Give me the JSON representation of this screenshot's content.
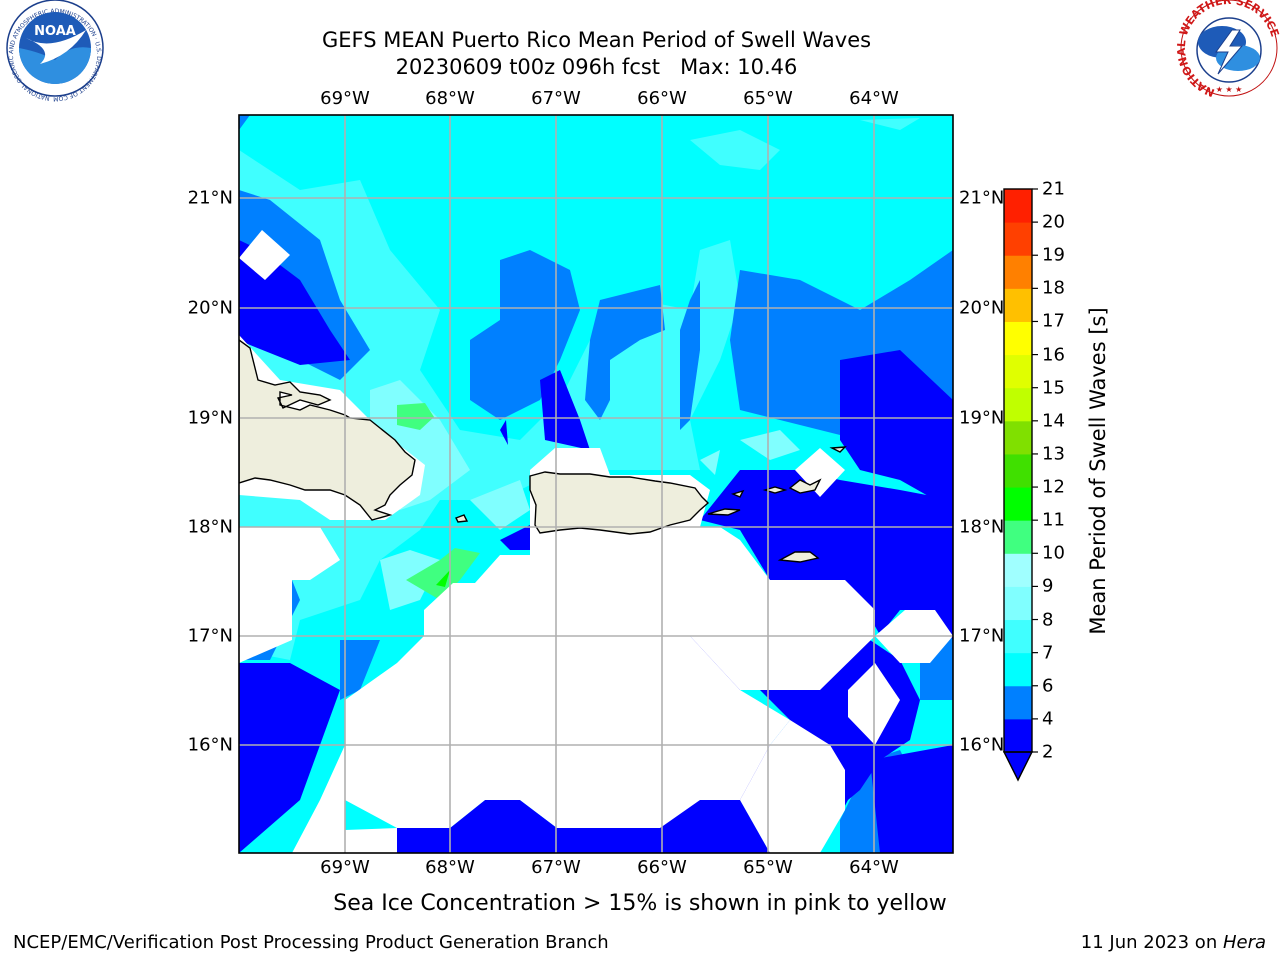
{
  "title": {
    "line1": "GEFS MEAN Puerto Rico Mean Period of Swell Waves",
    "line2": "20230609 t00z 096h fcst   Max: 10.46"
  },
  "map": {
    "lon_ticks": [
      "69°W",
      "68°W",
      "67°W",
      "66°W",
      "65°W",
      "64°W"
    ],
    "lat_ticks": [
      "21°N",
      "20°N",
      "19°N",
      "18°N",
      "17°N",
      "16°N"
    ],
    "land_color": "#eeeedd"
  },
  "colorbar": {
    "label": "Mean Period of Swell Waves [s]",
    "levels": [
      2,
      4,
      6,
      7,
      8,
      9,
      10,
      11,
      12,
      13,
      14,
      15,
      16,
      17,
      18,
      19,
      20,
      21
    ],
    "colors": [
      "#0000ff",
      "#0080ff",
      "#00ffff",
      "#40ffff",
      "#80ffff",
      "#a0ffff",
      "#40ff80",
      "#00ff00",
      "#40e000",
      "#80e000",
      "#c0ff00",
      "#e0ff00",
      "#ffff00",
      "#ffc000",
      "#ff8000",
      "#ff4000",
      "#ff2000",
      "#ff0000"
    ],
    "under_color": "#0000ff"
  },
  "note": "Sea Ice Concentration > 15% is shown in pink to yellow",
  "footer": {
    "left": "NCEP/EMC/Verification Post Processing Product Generation Branch",
    "right_prefix": "11 Jun 2023 on ",
    "right_host": "Hera"
  },
  "logos": {
    "noaa_text": "NOAA",
    "noaa_ring": "NATIONAL OCEANIC AND ATMOSPHERIC ADMINISTRATION · U.S. DEPARTMENT OF COMMERCE",
    "nws_ring": "NATIONAL WEATHER SERVICE"
  }
}
